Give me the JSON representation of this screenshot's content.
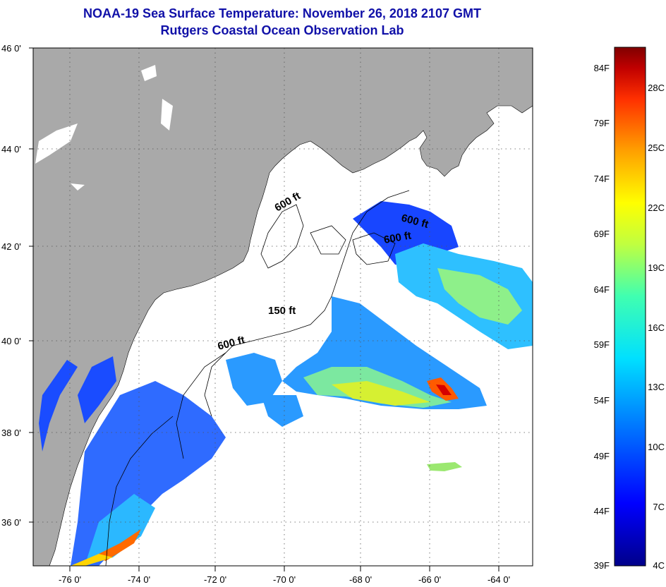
{
  "title": {
    "line1": "NOAA-19 Sea Surface Temperature:  November 26, 2018 2107 GMT",
    "line2": "Rutgers Coastal Ocean Observation Lab"
  },
  "map": {
    "lat_labels": [
      "46 0'",
      "44 0'",
      "42 0'",
      "40 0'",
      "38 0'",
      "36 0'"
    ],
    "lon_labels": [
      "-76 0'",
      "-74 0'",
      "-72 0'",
      "-70 0'",
      "-68 0'",
      "-66 0'",
      "-64 0'"
    ],
    "contour_labels": [
      "600 ft",
      "600 ft",
      "600 ft",
      "150 ft",
      "600 ft"
    ],
    "colors": {
      "land": "#a9a9a9",
      "water_no_data": "#ffffff"
    }
  },
  "colorbar": {
    "fahrenheit": [
      "84F",
      "79F",
      "74F",
      "69F",
      "64F",
      "59F",
      "54F",
      "49F",
      "44F",
      "39F"
    ],
    "celsius": [
      "28C",
      "25C",
      "22C",
      "19C",
      "16C",
      "13C",
      "10C",
      "7C",
      "4C"
    ],
    "stops": [
      "#00008a",
      "#0000ff",
      "#0080ff",
      "#00e0ff",
      "#40ffb0",
      "#c0ff40",
      "#ffff00",
      "#ffa000",
      "#ff3000",
      "#c00000",
      "#800000"
    ]
  }
}
